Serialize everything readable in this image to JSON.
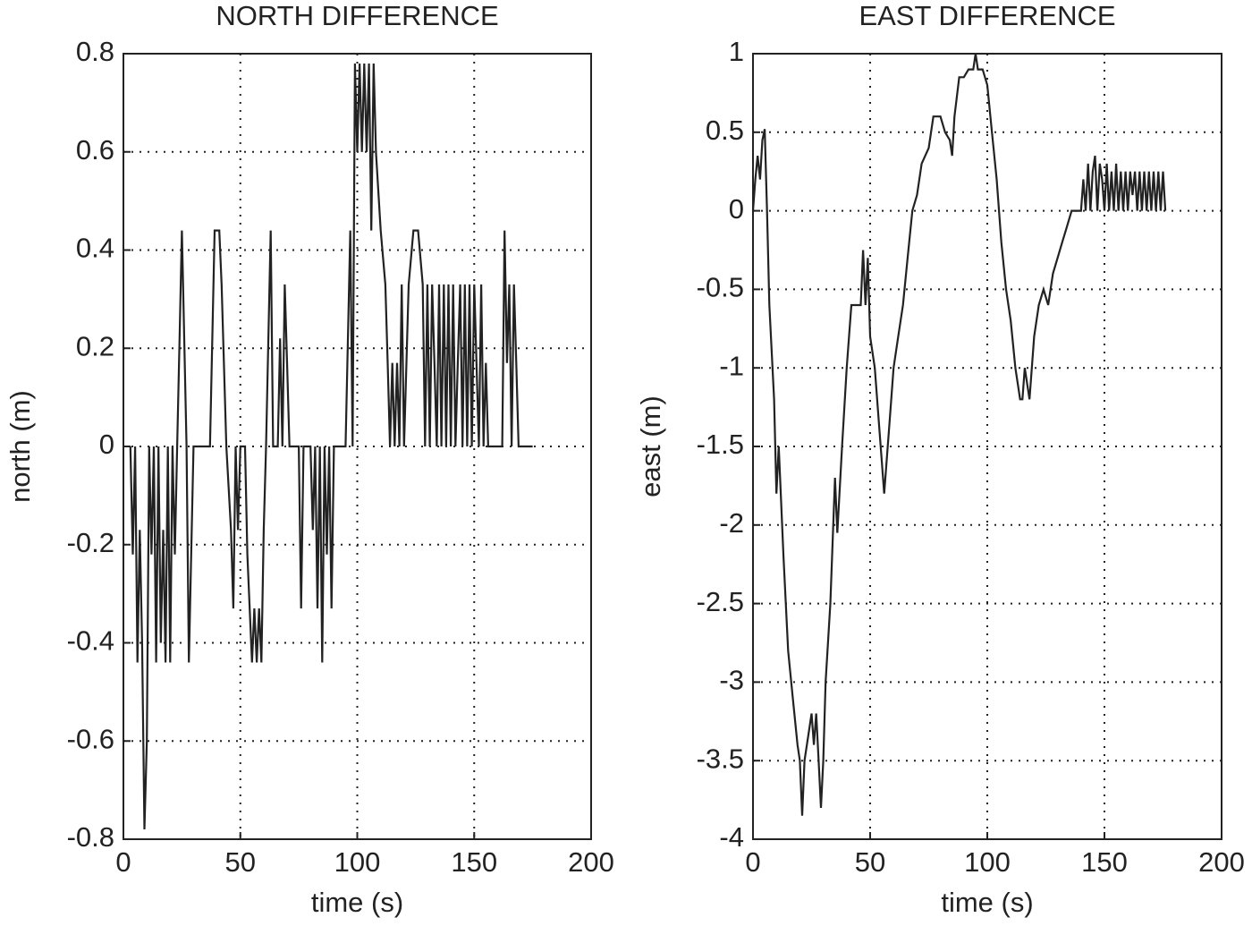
{
  "chart_data": [
    {
      "type": "line",
      "title": "NORTH DIFFERENCE",
      "x_label": "time (s)",
      "y_label": "north (m)",
      "color": "#222222",
      "grid": true,
      "xlim": [
        0,
        200
      ],
      "xticks": [
        0,
        50,
        100,
        150,
        200
      ],
      "ylim": [
        -0.8,
        0.8
      ],
      "yticks": [
        -0.8,
        -0.6,
        -0.4,
        -0.2,
        0,
        0.2,
        0.4,
        0.6,
        0.8
      ],
      "x": [
        3,
        4,
        5,
        6,
        7,
        8,
        9,
        10,
        11,
        12,
        13,
        14,
        15,
        16,
        17,
        18,
        19,
        20,
        21,
        22,
        23,
        24,
        25,
        26,
        27,
        28,
        29,
        30,
        37,
        38,
        39,
        41,
        42,
        44,
        46,
        47,
        48,
        49,
        50,
        52,
        53,
        55,
        56,
        57,
        58,
        59,
        60,
        61,
        62,
        63,
        64,
        66,
        67,
        68,
        69,
        70,
        71,
        75,
        76,
        77,
        80,
        81,
        82,
        83,
        84,
        85,
        86,
        87,
        88,
        89,
        90,
        95,
        97,
        98,
        99,
        100,
        101,
        102,
        103,
        104,
        105,
        106,
        107,
        108,
        110,
        112,
        113,
        114,
        115,
        116,
        117,
        118,
        119,
        120,
        122,
        124,
        126,
        128,
        129,
        130,
        131,
        132,
        133,
        134,
        135,
        136,
        137,
        138,
        139,
        140,
        141,
        142,
        143,
        144,
        145,
        146,
        147,
        148,
        149,
        150,
        152,
        153,
        154,
        155,
        156,
        162,
        163,
        164,
        165,
        166,
        167,
        168,
        169,
        175
      ],
      "values": [
        0,
        -0.22,
        0,
        -0.44,
        -0.17,
        -0.4,
        -0.78,
        -0.6,
        0,
        -0.22,
        0,
        -0.44,
        0,
        -0.4,
        -0.17,
        -0.44,
        0,
        -0.44,
        0,
        -0.22,
        0,
        0.22,
        0.44,
        0.22,
        0,
        -0.44,
        -0.22,
        0,
        0,
        0.22,
        0.44,
        0.44,
        0.33,
        0,
        -0.17,
        -0.33,
        0,
        -0.17,
        0,
        0,
        -0.22,
        -0.44,
        -0.33,
        -0.44,
        -0.33,
        -0.44,
        -0.17,
        0,
        0.22,
        0.44,
        0,
        0,
        0.22,
        0,
        0.33,
        0.17,
        0,
        0,
        -0.33,
        0,
        0,
        -0.17,
        0,
        -0.33,
        0,
        -0.44,
        0,
        -0.22,
        0,
        -0.33,
        0,
        0,
        0.44,
        0,
        0.78,
        0.6,
        0.78,
        0.6,
        0.78,
        0.6,
        0.78,
        0.44,
        0.78,
        0.6,
        0.44,
        0.33,
        0.17,
        0,
        0.17,
        0,
        0.17,
        0,
        0.33,
        0,
        0.33,
        0.44,
        0.44,
        0.33,
        0,
        0.33,
        0,
        0.33,
        0.17,
        0,
        0.33,
        0,
        0.33,
        0,
        0.33,
        0,
        0.33,
        0,
        0.17,
        0.33,
        0,
        0.33,
        0,
        0.33,
        0,
        0.33,
        0,
        0.33,
        0,
        0.17,
        0,
        0,
        0.44,
        0.17,
        0.33,
        0,
        0.33,
        0.17,
        0,
        0
      ]
    },
    {
      "type": "line",
      "title": "EAST DIFFERENCE",
      "x_label": "time (s)",
      "y_label": "east (m)",
      "color": "#222222",
      "grid": true,
      "xlim": [
        0,
        200
      ],
      "xticks": [
        0,
        50,
        100,
        150,
        200
      ],
      "ylim": [
        -4,
        1
      ],
      "yticks": [
        -4,
        -3.5,
        -3,
        -2.5,
        -2,
        -1.5,
        -1,
        -0.5,
        0,
        0.5,
        1
      ],
      "x": [
        0,
        1,
        2,
        3,
        4,
        5,
        6,
        7,
        9,
        10,
        11,
        13,
        15,
        17,
        19,
        20,
        21,
        22,
        24,
        25,
        26,
        27,
        28,
        29,
        30,
        31,
        33,
        35,
        36,
        38,
        40,
        42,
        44,
        46,
        47,
        48,
        49,
        50,
        52,
        55,
        56,
        58,
        60,
        62,
        64,
        66,
        68,
        70,
        72,
        75,
        77,
        80,
        82,
        84,
        85,
        86,
        88,
        90,
        92,
        94,
        95,
        96,
        98,
        100,
        102,
        104,
        106,
        108,
        110,
        112,
        114,
        115,
        116,
        118,
        120,
        122,
        124,
        126,
        128,
        130,
        132,
        134,
        136,
        140,
        141,
        142,
        143,
        144,
        145,
        146,
        147,
        148,
        149,
        150,
        151,
        152,
        153,
        154,
        155,
        156,
        157,
        158,
        159,
        160,
        161,
        162,
        163,
        164,
        165,
        166,
        167,
        168,
        169,
        170,
        171,
        172,
        173,
        174,
        175,
        176
      ],
      "values": [
        0,
        0.2,
        0.35,
        0.2,
        0.45,
        0.52,
        0,
        -0.6,
        -1.2,
        -1.8,
        -1.5,
        -2.2,
        -2.8,
        -3.1,
        -3.4,
        -3.5,
        -3.85,
        -3.5,
        -3.3,
        -3.2,
        -3.4,
        -3.2,
        -3.5,
        -3.8,
        -3.5,
        -3.0,
        -2.5,
        -1.7,
        -2.05,
        -1.5,
        -1.0,
        -0.6,
        -0.6,
        -0.6,
        -0.25,
        -0.6,
        -0.3,
        -0.8,
        -1.0,
        -1.6,
        -1.8,
        -1.4,
        -1.0,
        -0.8,
        -0.6,
        -0.3,
        0,
        0.1,
        0.3,
        0.4,
        0.6,
        0.6,
        0.5,
        0.45,
        0.35,
        0.6,
        0.85,
        0.85,
        0.9,
        0.9,
        1.0,
        0.9,
        0.9,
        0.8,
        0.5,
        0.2,
        -0.2,
        -0.5,
        -0.7,
        -1.0,
        -1.2,
        -1.2,
        -1.0,
        -1.2,
        -0.8,
        -0.6,
        -0.5,
        -0.6,
        -0.4,
        -0.3,
        -0.2,
        -0.1,
        0,
        0,
        0.2,
        0,
        0.3,
        0,
        0.25,
        0.35,
        0,
        0.3,
        0.2,
        0,
        0.3,
        0,
        0.25,
        0,
        0.3,
        0,
        0.25,
        0,
        0.25,
        0,
        0.25,
        0.1,
        0.25,
        0,
        0.25,
        0,
        0.25,
        0,
        0.25,
        0,
        0.25,
        0,
        0.25,
        0,
        0.25,
        0
      ]
    }
  ]
}
